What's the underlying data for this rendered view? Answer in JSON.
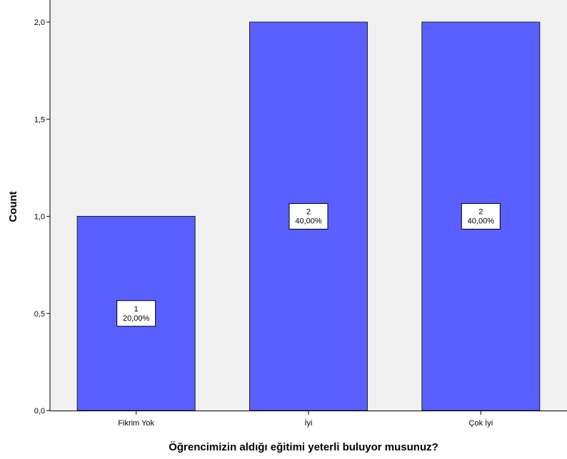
{
  "chart_data": {
    "type": "bar",
    "title": "",
    "xlabel": "Öğrencimizin aldığı eğitimi yeterli buluyor musunuz?",
    "ylabel": "Count",
    "categories": [
      "Fikrim Yok",
      "İyi",
      "Çok İyi"
    ],
    "values": [
      1,
      2,
      2
    ],
    "data_labels": [
      {
        "count": "1",
        "percent": "20,00%"
      },
      {
        "count": "2",
        "percent": "40,00%"
      },
      {
        "count": "2",
        "percent": "40,00%"
      }
    ],
    "ylim": [
      0,
      2.0
    ],
    "y_ticks": [
      0,
      0.5,
      1.0,
      1.5,
      2.0
    ],
    "y_tick_labels": [
      "0,0",
      "0,5",
      "1,0",
      "1,5",
      "2,0"
    ],
    "grid": false,
    "colors": {
      "plot_background": "#f0f0f0",
      "bar_fill": "#5a5fff",
      "bar_stroke": "#222222"
    }
  }
}
